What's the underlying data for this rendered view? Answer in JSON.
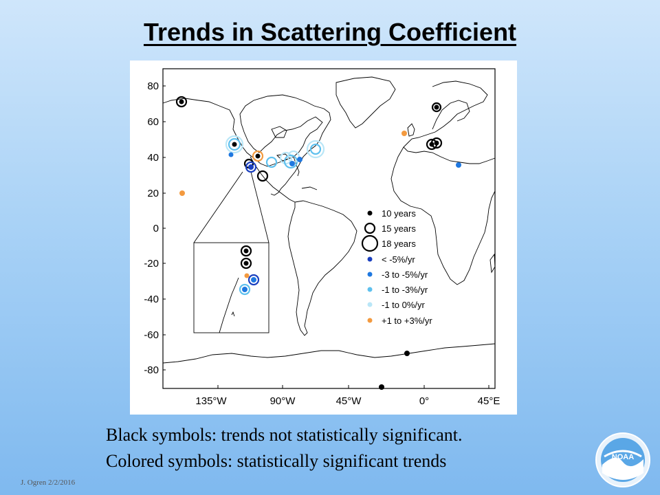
{
  "slide": {
    "title": "Trends in Scattering Coefficient",
    "caption_line1": "Black symbols: trends not statistically significant.",
    "caption_line2": "Colored symbols: statistically significant trends",
    "footer": "J. Ogren  2/2/2016",
    "logo_text": "NOAA"
  },
  "map": {
    "y_ticks": [
      "80",
      "60",
      "40",
      "20",
      "0",
      "-20",
      "-40",
      "-60",
      "-80"
    ],
    "x_ticks": [
      "135°W",
      "90°W",
      "45°W",
      "0°",
      "45°E"
    ],
    "legend": [
      {
        "label": "10 years",
        "symbol": "dot",
        "color": "#000000"
      },
      {
        "label": "15 years",
        "symbol": "ring-medium",
        "color": "#000000"
      },
      {
        "label": "18 years",
        "symbol": "ring-large",
        "color": "#000000"
      },
      {
        "label": "< -5%/yr",
        "symbol": "dot",
        "color": "#1a3fbf"
      },
      {
        "label": "-3 to -5%/yr",
        "symbol": "dot",
        "color": "#1f78e0"
      },
      {
        "label": "-1 to -3%/yr",
        "symbol": "dot",
        "color": "#5ec0ee"
      },
      {
        "label": "-1 to 0%/yr",
        "symbol": "dot",
        "color": "#b9e6f7"
      },
      {
        "label": "+1 to +3%/yr",
        "symbol": "dot",
        "color": "#f39a3f"
      }
    ],
    "colors": {
      "ns": "#000000",
      "lt_minus5": "#1a3fbf",
      "m3_m5": "#1f78e0",
      "m1_m3": "#5ec0ee",
      "m1_0": "#b9e6f7",
      "p1_p3": "#f39a3f"
    }
  }
}
